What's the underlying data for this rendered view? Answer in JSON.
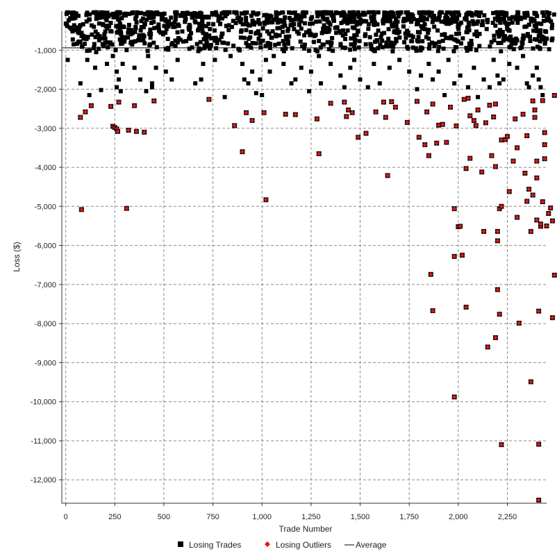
{
  "chart_data": {
    "type": "scatter",
    "xlabel": "Trade Number",
    "ylabel": "Loss ($)",
    "xlim": [
      -20,
      2450
    ],
    "ylim": [
      -12600,
      0
    ],
    "x_ticks": [
      0,
      250,
      500,
      750,
      1000,
      1250,
      1500,
      1750,
      2000,
      2250
    ],
    "x_tick_labels": [
      "0",
      "250",
      "500",
      "750",
      "1,000",
      "1,250",
      "1,500",
      "1,750",
      "2,000",
      "2,250"
    ],
    "y_ticks": [
      -1000,
      -2000,
      -3000,
      -4000,
      -5000,
      -6000,
      -7000,
      -8000,
      -9000,
      -10000,
      -11000,
      -12000
    ],
    "y_tick_labels": [
      "-1,000",
      "-2,000",
      "-3,000",
      "-4,000",
      "-5,000",
      "-6,000",
      "-7,000",
      "-8,000",
      "-9,000",
      "-10,000",
      "-11,000",
      "-12,000"
    ],
    "grid": true,
    "legend_position": "bottom-center",
    "average": -940,
    "series": [
      {
        "name": "Losing Trades",
        "color": "#000000",
        "marker": "square",
        "points": [
          [
            10,
            -1250
          ],
          [
            40,
            -850
          ],
          [
            70,
            -780
          ],
          [
            75,
            -1850
          ],
          [
            110,
            -1250
          ],
          [
            120,
            -2150
          ],
          [
            150,
            -1450
          ],
          [
            155,
            -1050
          ],
          [
            180,
            -2020
          ],
          [
            210,
            -1350
          ],
          [
            240,
            -1150
          ],
          [
            260,
            -1550
          ],
          [
            260,
            -1950
          ],
          [
            270,
            -1750
          ],
          [
            280,
            -2050
          ],
          [
            290,
            -1350
          ],
          [
            350,
            -1450
          ],
          [
            380,
            -1750
          ],
          [
            410,
            -2050
          ],
          [
            420,
            -1150
          ],
          [
            440,
            -1850
          ],
          [
            440,
            -1950
          ],
          [
            460,
            -1450
          ],
          [
            510,
            -1550
          ],
          [
            540,
            -1750
          ],
          [
            570,
            -1250
          ],
          [
            660,
            -1850
          ],
          [
            690,
            -1750
          ],
          [
            700,
            -1350
          ],
          [
            760,
            -1250
          ],
          [
            810,
            -2200
          ],
          [
            840,
            -1150
          ],
          [
            900,
            -1350
          ],
          [
            910,
            -1750
          ],
          [
            930,
            -1850
          ],
          [
            950,
            -1550
          ],
          [
            970,
            -2100
          ],
          [
            990,
            -1750
          ],
          [
            1000,
            -2150
          ],
          [
            1020,
            -1250
          ],
          [
            1040,
            -1550
          ],
          [
            1060,
            -1150
          ],
          [
            1110,
            -1350
          ],
          [
            1150,
            -1850
          ],
          [
            1170,
            -1750
          ],
          [
            1200,
            -1450
          ],
          [
            1240,
            -2050
          ],
          [
            1250,
            -1550
          ],
          [
            1290,
            -1150
          ],
          [
            1300,
            -1850
          ],
          [
            1350,
            -1350
          ],
          [
            1400,
            -1650
          ],
          [
            1420,
            -1950
          ],
          [
            1450,
            -1450
          ],
          [
            1470,
            -1250
          ],
          [
            1500,
            -1750
          ],
          [
            1540,
            -1950
          ],
          [
            1570,
            -1350
          ],
          [
            1600,
            -1850
          ],
          [
            1650,
            -1450
          ],
          [
            1700,
            -1250
          ],
          [
            1750,
            -1550
          ],
          [
            1790,
            -2000
          ],
          [
            1810,
            -1650
          ],
          [
            1850,
            -1350
          ],
          [
            1870,
            -1750
          ],
          [
            1900,
            -1550
          ],
          [
            1930,
            -2150
          ],
          [
            1950,
            -1250
          ],
          [
            1980,
            -1850
          ],
          [
            2010,
            -1650
          ],
          [
            2050,
            -1950
          ],
          [
            2080,
            -1450
          ],
          [
            2100,
            -2200
          ],
          [
            2130,
            -1750
          ],
          [
            2160,
            -1950
          ],
          [
            2180,
            -1250
          ],
          [
            2200,
            -1650
          ],
          [
            2210,
            -1850
          ],
          [
            2230,
            -1750
          ],
          [
            2260,
            -1350
          ],
          [
            2300,
            -1450
          ],
          [
            2330,
            -1150
          ],
          [
            2350,
            -1850
          ],
          [
            2360,
            -1950
          ],
          [
            2380,
            -1650
          ],
          [
            2400,
            -1450
          ],
          [
            2410,
            -1750
          ],
          [
            2420,
            -1950
          ],
          [
            2430,
            -2150
          ]
        ]
      },
      {
        "name": "Losing Outliers",
        "color": "#ee1111",
        "marker": "diamond",
        "points": [
          [
            75,
            -2720
          ],
          [
            80,
            -5080
          ],
          [
            100,
            -2580
          ],
          [
            130,
            -2420
          ],
          [
            230,
            -2440
          ],
          [
            240,
            -2950
          ],
          [
            250,
            -2980
          ],
          [
            260,
            -3020
          ],
          [
            265,
            -3080
          ],
          [
            270,
            -2330
          ],
          [
            310,
            -5050
          ],
          [
            320,
            -3050
          ],
          [
            350,
            -2420
          ],
          [
            360,
            -3080
          ],
          [
            400,
            -3100
          ],
          [
            450,
            -2300
          ],
          [
            730,
            -2260
          ],
          [
            860,
            -2930
          ],
          [
            900,
            -3600
          ],
          [
            920,
            -2600
          ],
          [
            950,
            -2800
          ],
          [
            1010,
            -2600
          ],
          [
            1020,
            -4830
          ],
          [
            1120,
            -2640
          ],
          [
            1170,
            -2650
          ],
          [
            1280,
            -2760
          ],
          [
            1290,
            -3650
          ],
          [
            1350,
            -2360
          ],
          [
            1420,
            -2330
          ],
          [
            1430,
            -2700
          ],
          [
            1440,
            -2530
          ],
          [
            1460,
            -2600
          ],
          [
            1490,
            -3230
          ],
          [
            1530,
            -3130
          ],
          [
            1580,
            -2580
          ],
          [
            1620,
            -2330
          ],
          [
            1630,
            -2720
          ],
          [
            1640,
            -4210
          ],
          [
            1660,
            -2320
          ],
          [
            1680,
            -2460
          ],
          [
            1740,
            -2850
          ],
          [
            1790,
            -2310
          ],
          [
            1800,
            -3230
          ],
          [
            1830,
            -3420
          ],
          [
            1840,
            -2580
          ],
          [
            1850,
            -3700
          ],
          [
            1870,
            -2380
          ],
          [
            1890,
            -3380
          ],
          [
            1900,
            -2920
          ],
          [
            1920,
            -2900
          ],
          [
            1940,
            -3360
          ],
          [
            1960,
            -2460
          ],
          [
            1990,
            -2940
          ],
          [
            1860,
            -6740
          ],
          [
            1870,
            -7670
          ],
          [
            1980,
            -5060
          ],
          [
            1980,
            -6280
          ],
          [
            1980,
            -9880
          ],
          [
            2000,
            -5520
          ],
          [
            2010,
            -5510
          ],
          [
            2020,
            -6250
          ],
          [
            2030,
            -2260
          ],
          [
            2040,
            -4030
          ],
          [
            2040,
            -7580
          ],
          [
            2050,
            -2230
          ],
          [
            2060,
            -3770
          ],
          [
            2060,
            -2680
          ],
          [
            2080,
            -2800
          ],
          [
            2090,
            -2930
          ],
          [
            2100,
            -2530
          ],
          [
            2120,
            -4120
          ],
          [
            2130,
            -5640
          ],
          [
            2140,
            -2860
          ],
          [
            2150,
            -8600
          ],
          [
            2160,
            -2410
          ],
          [
            2170,
            -3700
          ],
          [
            2180,
            -2710
          ],
          [
            2190,
            -2380
          ],
          [
            2190,
            -3980
          ],
          [
            2190,
            -8360
          ],
          [
            2200,
            -5640
          ],
          [
            2200,
            -5880
          ],
          [
            2200,
            -7130
          ],
          [
            2210,
            -5060
          ],
          [
            2220,
            -5000
          ],
          [
            2210,
            -7760
          ],
          [
            2220,
            -3300
          ],
          [
            2220,
            -11100
          ],
          [
            2240,
            -3290
          ],
          [
            2250,
            -3210
          ],
          [
            2260,
            -4620
          ],
          [
            2280,
            -3840
          ],
          [
            2290,
            -2760
          ],
          [
            2300,
            -5280
          ],
          [
            2300,
            -3500
          ],
          [
            2310,
            -7990
          ],
          [
            2330,
            -2640
          ],
          [
            2340,
            -4150
          ],
          [
            2350,
            -3190
          ],
          [
            2350,
            -4870
          ],
          [
            2360,
            -4560
          ],
          [
            2370,
            -5640
          ],
          [
            2370,
            -9490
          ],
          [
            2380,
            -4710
          ],
          [
            2380,
            -2300
          ],
          [
            2390,
            -2530
          ],
          [
            2390,
            -2720
          ],
          [
            2400,
            -4270
          ],
          [
            2400,
            -5350
          ],
          [
            2400,
            -3840
          ],
          [
            2410,
            -11090
          ],
          [
            2410,
            -12520
          ],
          [
            2410,
            -7680
          ],
          [
            2420,
            -5510
          ],
          [
            2420,
            -5450
          ],
          [
            2430,
            -2290
          ],
          [
            2430,
            -4880
          ],
          [
            2440,
            -3780
          ],
          [
            2440,
            -3420
          ],
          [
            2440,
            -3110
          ],
          [
            2450,
            -5500
          ],
          [
            2460,
            -5180
          ],
          [
            2470,
            -5040
          ],
          [
            2480,
            -5370
          ],
          [
            2480,
            -7850
          ],
          [
            2490,
            -2160
          ],
          [
            2490,
            -6760
          ]
        ]
      },
      {
        "name": "Average",
        "color": "#555555",
        "marker": "line"
      }
    ]
  }
}
